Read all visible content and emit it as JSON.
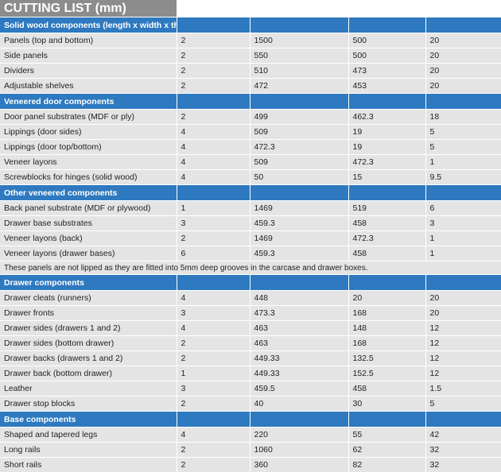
{
  "title": "CUTTING LIST (mm)",
  "sections": [
    {
      "header": "Solid wood components (length x width x thickness)",
      "rows": [
        [
          "Panels (top and bottom)",
          "2",
          "1500",
          "500",
          "20"
        ],
        [
          "Side panels",
          "2",
          "550",
          "500",
          "20"
        ],
        [
          "Dividers",
          "2",
          "510",
          "473",
          "20"
        ],
        [
          "Adjustable shelves",
          "2",
          "472",
          "453",
          "20"
        ]
      ]
    },
    {
      "header": "Veneered door components",
      "rows": [
        [
          "Door panel substrates (MDF or ply)",
          "2",
          "499",
          "462.3",
          "18"
        ],
        [
          "Lippings (door sides)",
          "4",
          "509",
          "19",
          "5"
        ],
        [
          "Lippings (door top/bottom)",
          "4",
          "472.3",
          "19",
          "5"
        ],
        [
          "Veneer layons",
          "4",
          "509",
          "472.3",
          "1"
        ],
        [
          "Screwblocks for hinges (solid wood)",
          "4",
          "50",
          "15",
          "9.5"
        ]
      ]
    },
    {
      "header": "Other veneered components",
      "rows": [
        [
          "Back panel substrate (MDF or plywood)",
          "1",
          "1469",
          "519",
          "6"
        ],
        [
          "Drawer base substrates",
          "3",
          "459.3",
          "458",
          "3"
        ],
        [
          "Veneer layons (back)",
          "2",
          "1469",
          "472.3",
          "1"
        ],
        [
          "Veneer layons (drawer bases)",
          "6",
          "459.3",
          "458",
          "1"
        ]
      ],
      "note": "These panels are not lipped as they are fitted into 5mm deep grooves in the carcase and drawer boxes."
    },
    {
      "header": "Drawer components",
      "rows": [
        [
          "Drawer cleats (runners)",
          "4",
          "448",
          "20",
          "20"
        ],
        [
          "Drawer fronts",
          "3",
          "473.3",
          "168",
          "20"
        ],
        [
          "Drawer sides (drawers 1 and 2)",
          "4",
          "463",
          "148",
          "12"
        ],
        [
          "Drawer sides (bottom drawer)",
          "2",
          "463",
          "168",
          "12"
        ],
        [
          "Drawer backs (drawers 1 and 2)",
          "2",
          "449.33",
          "132.5",
          "12"
        ],
        [
          "Drawer back (bottom drawer)",
          "1",
          "449.33",
          "152.5",
          "12"
        ],
        [
          "Leather",
          "3",
          "459.5",
          "458",
          "1.5"
        ],
        [
          "Drawer stop blocks",
          "2",
          "40",
          "30",
          "5"
        ]
      ]
    },
    {
      "header": "Base components",
      "rows": [
        [
          "Shaped and tapered legs",
          "4",
          "220",
          "55",
          "42"
        ],
        [
          "Long rails",
          "2",
          "1060",
          "62",
          "32"
        ],
        [
          "Short rails",
          "2",
          "360",
          "82",
          "32"
        ]
      ]
    }
  ]
}
